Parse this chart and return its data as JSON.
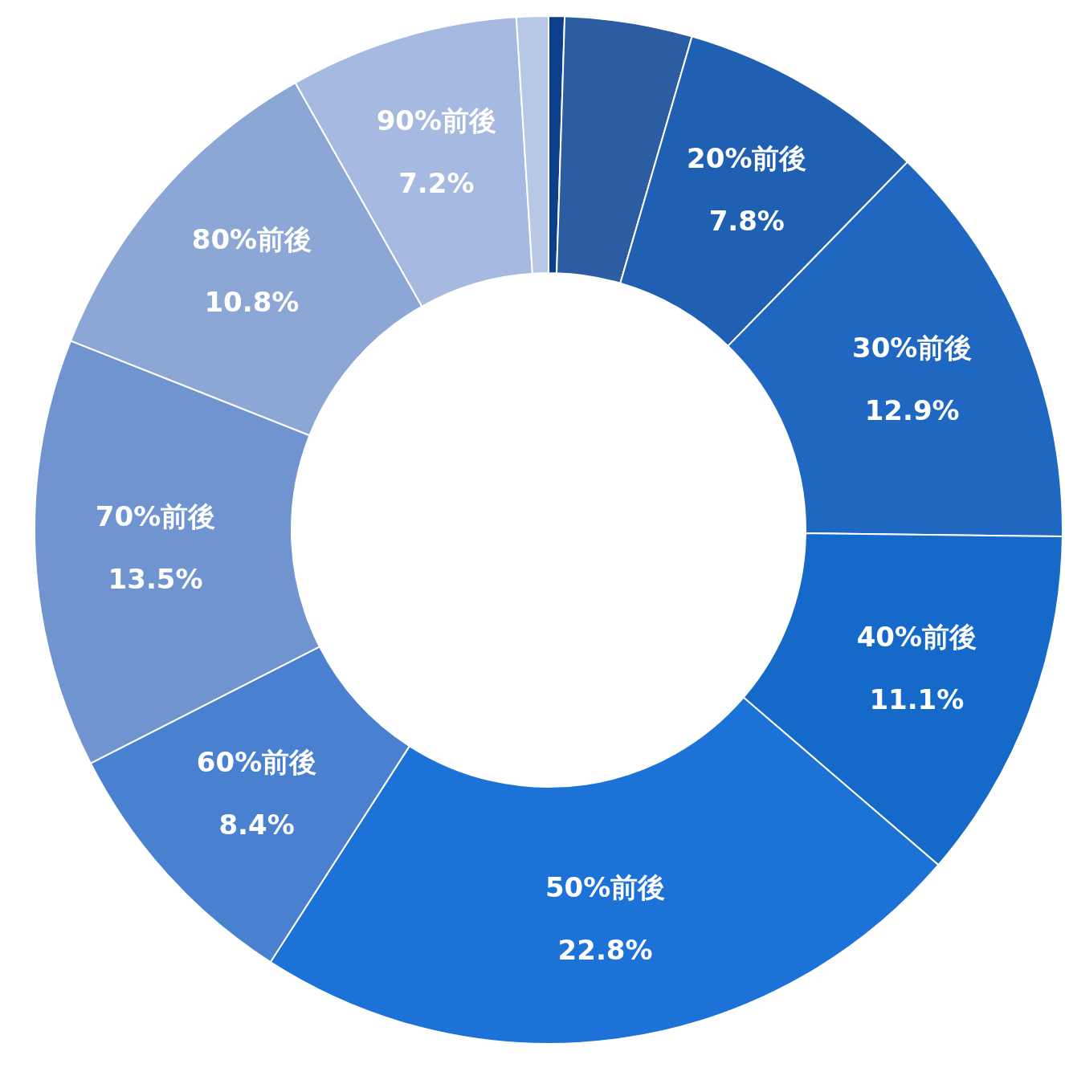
{
  "chart_data": {
    "type": "donut",
    "categories": [
      null,
      null,
      "20%前後",
      "30%前後",
      "40%前後",
      "50%前後",
      "60%前後",
      "70%前後",
      "80%前後",
      "90%前後",
      null
    ],
    "values": [
      0.5,
      4.0,
      7.8,
      12.9,
      11.1,
      22.8,
      8.4,
      13.5,
      10.8,
      7.2,
      1.0
    ],
    "value_labels": [
      null,
      null,
      "7.8%",
      "12.9%",
      "11.1%",
      "22.8%",
      "8.4%",
      "13.5%",
      "10.8%",
      "7.2%",
      null
    ],
    "colors": [
      "#0d3f8a",
      "#2c5da3",
      "#2060b2",
      "#1f67c0",
      "#1569c9",
      "#1d72d8",
      "#4a80d0",
      "#6f94cf",
      "#8ca6d6",
      "#a6b9e0",
      "#b7c7e6"
    ]
  }
}
